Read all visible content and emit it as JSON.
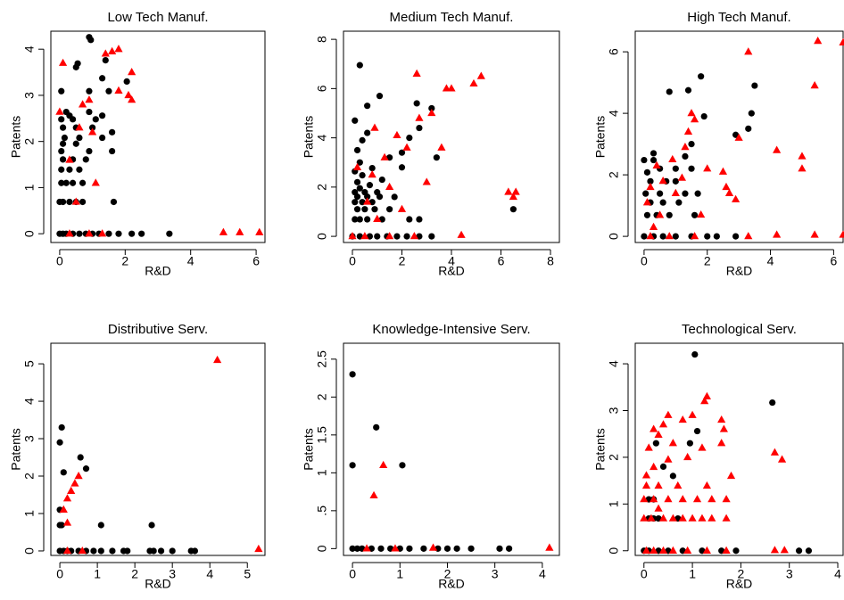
{
  "chart_data": [
    {
      "type": "scatter",
      "title": "Low Tech Manuf.",
      "x_label": "R&D",
      "y_label": "Patents",
      "xlim": [
        -0.27,
        6.27
      ],
      "ylim": [
        -0.19,
        4.39
      ],
      "xticks": [
        0,
        2,
        4,
        6
      ],
      "yticks": [
        0,
        1,
        2,
        3,
        4
      ],
      "series": [
        {
          "color": "#000000",
          "marker": "circle",
          "x": [
            0,
            0.1,
            0.2,
            0.4,
            0.6,
            0.8,
            1,
            1.2,
            1.5,
            1.8,
            2.2,
            2.5,
            3.35,
            0,
            0.1,
            0.3,
            0.5,
            0.7,
            1.65,
            0.05,
            0.2,
            0.4,
            0.7,
            0.05,
            0.3,
            0.6,
            0.1,
            0.4,
            0.8,
            0.05,
            0.9,
            1.6,
            0.1,
            0.5,
            0.15,
            0.6,
            1.3,
            0.1,
            0.5,
            1.0,
            0.05,
            0.4,
            1.1,
            0.3,
            1.3,
            0.2,
            0.9,
            0.05,
            0.9,
            1.5,
            2.05,
            1.3,
            0.5,
            0.55,
            0.95,
            0.9,
            1.4,
            1.6
          ],
          "values": [
            0,
            0,
            0,
            0,
            0,
            0,
            0,
            0,
            0,
            0,
            0,
            0,
            0,
            0.69,
            0.69,
            0.69,
            0.69,
            0.69,
            0.69,
            1.1,
            1.1,
            1.1,
            1.1,
            1.39,
            1.39,
            1.39,
            1.61,
            1.61,
            1.61,
            1.79,
            1.79,
            1.79,
            1.95,
            1.95,
            2.08,
            2.08,
            2.08,
            2.3,
            2.3,
            2.3,
            2.48,
            2.48,
            2.48,
            2.56,
            2.56,
            2.64,
            2.64,
            3.09,
            3.09,
            3.09,
            3.3,
            3.37,
            3.61,
            3.69,
            4.2,
            4.26,
            3.76,
            2.2
          ]
        },
        {
          "color": "#ff0000",
          "marker": "triangle",
          "x": [
            0.3,
            0.9,
            1.3,
            5.0,
            5.5,
            6.1,
            0,
            0.1,
            0.6,
            0.9,
            1.0,
            1.4,
            1.6,
            1.8,
            1.8,
            2.1,
            2.2,
            2.2,
            0.5,
            1.1,
            0.3,
            0.7
          ],
          "values": [
            0,
            0,
            0,
            0.03,
            0.03,
            0.03,
            2.64,
            3.7,
            2.3,
            2.9,
            2.2,
            3.9,
            3.95,
            4.0,
            3.1,
            3.0,
            2.9,
            3.5,
            0.69,
            1.1,
            1.6,
            2.8
          ]
        }
      ]
    },
    {
      "type": "scatter",
      "title": "Medium Tech Manuf.",
      "x_label": "R&D",
      "y_label": "Patents",
      "xlim": [
        -0.36,
        8.36
      ],
      "ylim": [
        -0.25,
        8.33
      ],
      "xticks": [
        0,
        2,
        4,
        6,
        8
      ],
      "yticks": [
        0,
        2,
        4,
        6,
        8
      ],
      "series": [
        {
          "color": "#000000",
          "marker": "circle",
          "x": [
            0,
            0.3,
            0.7,
            1.0,
            1.4,
            1.8,
            2.2,
            2.7,
            3.2,
            0.1,
            0.3,
            0.6,
            1.2,
            2.3,
            2.7,
            0.2,
            0.5,
            0.9,
            1.5,
            0.1,
            0.4,
            0.8,
            0.2,
            0.6,
            1.1,
            0.1,
            0.5,
            1.0,
            0.3,
            0.7,
            0.2,
            1.2,
            0.4,
            0.1,
            0.8,
            0.3,
            1.5,
            2.0,
            0.2,
            0.4,
            0.6,
            0.1,
            2.3,
            2.7,
            2.6,
            3.2,
            0.6,
            1.1,
            0.3,
            6.5,
            3.4,
            1.7,
            2.0
          ],
          "values": [
            0,
            0,
            0,
            0,
            0,
            0,
            0,
            0,
            0,
            0.69,
            0.69,
            0.69,
            0.69,
            0.69,
            0.69,
            1.1,
            1.1,
            1.1,
            1.1,
            1.39,
            1.39,
            1.39,
            1.61,
            1.61,
            1.61,
            1.79,
            1.79,
            1.79,
            1.95,
            2.08,
            2.2,
            2.3,
            2.48,
            2.64,
            2.77,
            3.0,
            3.2,
            3.4,
            3.5,
            3.9,
            4.2,
            4.7,
            4.0,
            4.4,
            5.4,
            5.2,
            5.3,
            5.7,
            6.95,
            1.1,
            3.2,
            1.6,
            2.8
          ]
        },
        {
          "color": "#ff0000",
          "marker": "triangle",
          "x": [
            0,
            0.5,
            1.5,
            2.5,
            4.4,
            0.2,
            0.8,
            1.3,
            1.8,
            2.2,
            2.6,
            2.7,
            3.0,
            3.2,
            3.6,
            3.8,
            4.0,
            4.9,
            5.2,
            6.3,
            6.5,
            6.6,
            0.6,
            1.0,
            2.0,
            1.5,
            0.9
          ],
          "values": [
            0,
            0,
            0,
            0,
            0.05,
            2.8,
            2.5,
            3.2,
            4.1,
            3.6,
            6.6,
            4.8,
            2.2,
            5.0,
            3.6,
            6.0,
            6.0,
            6.2,
            6.5,
            1.8,
            1.6,
            1.8,
            1.4,
            0.7,
            1.1,
            2.0,
            4.4
          ]
        }
      ]
    },
    {
      "type": "scatter",
      "title": "High Tech Manuf.",
      "x_label": "R&D",
      "y_label": "Patents",
      "xlim": [
        -0.28,
        6.3
      ],
      "ylim": [
        -0.2,
        6.67
      ],
      "xticks": [
        0,
        2,
        4,
        6
      ],
      "yticks": [
        0,
        2,
        4,
        6
      ],
      "series": [
        {
          "color": "#000000",
          "marker": "circle",
          "x": [
            0,
            0.3,
            0.6,
            1.0,
            1.5,
            2.0,
            2.3,
            2.9,
            0.1,
            0.4,
            0.8,
            1.6,
            0.2,
            0.6,
            1.1,
            0.05,
            0.5,
            1.3,
            1.7,
            0.2,
            0.7,
            1.0,
            0.1,
            0.5,
            1.0,
            1.5,
            0.3,
            0.0,
            0.3,
            1.3,
            1.5,
            0.8,
            1.4,
            1.8,
            1.9,
            2.9,
            3.3,
            3.4,
            3.5
          ],
          "values": [
            0,
            0,
            0,
            0,
            0,
            0,
            0,
            0,
            0.69,
            0.69,
            0.69,
            0.69,
            1.1,
            1.1,
            1.1,
            1.39,
            1.39,
            1.39,
            1.39,
            1.79,
            1.79,
            1.79,
            2.08,
            2.2,
            2.2,
            2.2,
            2.48,
            2.48,
            2.7,
            2.6,
            3.0,
            4.7,
            4.75,
            5.2,
            3.9,
            3.3,
            3.5,
            4.0,
            4.9
          ]
        },
        {
          "color": "#ff0000",
          "marker": "triangle",
          "x": [
            0.2,
            0.8,
            1.6,
            3.3,
            4.2,
            5.4,
            6.3,
            0.1,
            0.2,
            0.4,
            0.6,
            0.9,
            1.0,
            1.2,
            1.4,
            1.5,
            1.6,
            1.3,
            1.8,
            2.0,
            2.5,
            2.6,
            2.7,
            3.0,
            3.3,
            4.2,
            5.0,
            5.0,
            5.4,
            5.5,
            6.3,
            2.9,
            0.5,
            0.3
          ],
          "values": [
            0,
            0,
            0,
            0,
            0.05,
            0.05,
            0.05,
            1.1,
            1.6,
            2.3,
            1.8,
            2.5,
            1.4,
            1.9,
            3.4,
            4.0,
            3.8,
            2.9,
            0.7,
            2.2,
            2.1,
            1.6,
            1.4,
            3.2,
            6.0,
            2.8,
            2.6,
            2.2,
            4.9,
            6.35,
            6.3,
            1.2,
            0.69,
            0.3
          ]
        }
      ]
    },
    {
      "type": "scatter",
      "title": "Distributive Serv.",
      "x_label": "R&D",
      "y_label": "Patents",
      "xlim": [
        -0.24,
        5.47
      ],
      "ylim": [
        -0.12,
        5.55
      ],
      "xticks": [
        0,
        1,
        2,
        3,
        4,
        5
      ],
      "yticks": [
        0,
        1,
        2,
        3,
        4,
        5
      ],
      "series": [
        {
          "color": "#000000",
          "marker": "circle",
          "x": [
            0,
            0.1,
            0.2,
            0.3,
            0.5,
            0.7,
            0.9,
            1.1,
            1.4,
            1.7,
            1.8,
            2.4,
            2.5,
            2.7,
            3.0,
            3.5,
            3.6,
            0,
            0,
            0.05,
            0,
            0.05,
            0.1,
            0.55,
            0.7,
            1.1,
            2.45
          ],
          "values": [
            0,
            0,
            0,
            0,
            0,
            0,
            0,
            0,
            0,
            0,
            0,
            0,
            0,
            0,
            0,
            0,
            0,
            1.1,
            0.69,
            0.69,
            2.9,
            3.3,
            2.1,
            2.5,
            2.2,
            0.69,
            0.69
          ]
        },
        {
          "color": "#ff0000",
          "marker": "triangle",
          "x": [
            0.2,
            0.6,
            5.3,
            0.2,
            0.2,
            0.3,
            0.4,
            0.5,
            4.2,
            0.1
          ],
          "values": [
            0,
            0,
            0.05,
            0.75,
            1.4,
            1.6,
            1.8,
            2.0,
            5.1,
            1.1
          ]
        }
      ]
    },
    {
      "type": "scatter",
      "title": "Knowledge-Intensive Serv.",
      "x_label": "R&D",
      "y_label": "Patents",
      "xlim": [
        -0.19,
        4.36
      ],
      "ylim": [
        -0.09,
        2.71
      ],
      "xticks": [
        0,
        1,
        2,
        3,
        4
      ],
      "yticks": [
        0,
        {
          "value": 0.5,
          "label": ".5"
        },
        1,
        1.5,
        2,
        2.5
      ],
      "series": [
        {
          "color": "#000000",
          "marker": "circle",
          "x": [
            0,
            0.1,
            0.2,
            0.4,
            0.6,
            0.8,
            1.0,
            1.2,
            1.5,
            1.8,
            2.0,
            2.2,
            2.5,
            3.1,
            3.3,
            0,
            0,
            0.5,
            1.05
          ],
          "values": [
            0,
            0,
            0,
            0,
            0,
            0,
            0,
            0,
            0,
            0,
            0,
            0,
            0,
            0,
            0,
            2.3,
            1.1,
            1.6,
            1.1
          ]
        },
        {
          "color": "#ff0000",
          "marker": "triangle",
          "x": [
            0.3,
            0.9,
            1.7,
            4.15,
            0.45,
            0.65
          ],
          "values": [
            0,
            0,
            0.01,
            0.01,
            0.7,
            1.1
          ]
        }
      ]
    },
    {
      "type": "scatter",
      "title": "Technological Serv.",
      "x_label": "R&D",
      "y_label": "Patents",
      "xlim": [
        -0.18,
        4.11
      ],
      "ylim": [
        -0.1,
        4.44
      ],
      "xticks": [
        0,
        1,
        2,
        3,
        4
      ],
      "yticks": [
        0,
        1,
        2,
        3,
        4
      ],
      "series": [
        {
          "color": "#000000",
          "marker": "circle",
          "x": [
            0,
            0.1,
            0.3,
            0.5,
            0.8,
            1.2,
            1.6,
            1.9,
            3.2,
            3.4,
            0.1,
            0.2,
            0.3,
            0.1,
            0.2,
            0.25,
            0.4,
            0.6,
            0.7,
            0.95,
            1.1,
            1.05,
            2.65
          ],
          "values": [
            0,
            0,
            0,
            0,
            0,
            0,
            0,
            0,
            0,
            0,
            0.69,
            0.69,
            0.69,
            1.1,
            1.1,
            2.3,
            1.8,
            1.6,
            0.69,
            2.3,
            2.56,
            4.2,
            3.17
          ]
        },
        {
          "color": "#ff0000",
          "marker": "triangle",
          "x": [
            0.05,
            0.2,
            0.4,
            0.6,
            0.9,
            1.3,
            1.7,
            2.7,
            2.9,
            0,
            0.15,
            0.4,
            0.6,
            0.8,
            1.0,
            1.2,
            1.4,
            1.7,
            0,
            0.2,
            0.5,
            0.8,
            1.1,
            1.4,
            1.7,
            0.05,
            0.3,
            0.7,
            1.3,
            0.05,
            0.2,
            0.5,
            0.1,
            0.3,
            0.6,
            0.9,
            1.2,
            0.2,
            0.4,
            0.5,
            0.8,
            1.0,
            1.3,
            1.25,
            1.6,
            1.65,
            1.6,
            2.7,
            2.85,
            0.3,
            1.8
          ],
          "values": [
            0,
            0,
            0,
            0,
            0,
            0,
            0,
            0.01,
            0.01,
            0.69,
            0.69,
            0.69,
            0.69,
            0.69,
            0.69,
            0.69,
            0.69,
            0.69,
            1.1,
            1.1,
            1.1,
            1.1,
            1.1,
            1.1,
            1.1,
            1.39,
            1.39,
            1.39,
            1.39,
            1.61,
            1.79,
            1.95,
            2.2,
            2.48,
            2.3,
            2.0,
            2.2,
            2.6,
            2.7,
            2.9,
            2.8,
            2.9,
            3.3,
            3.2,
            2.8,
            2.6,
            2.3,
            2.1,
            1.95,
            0.9,
            1.6
          ]
        }
      ]
    }
  ]
}
